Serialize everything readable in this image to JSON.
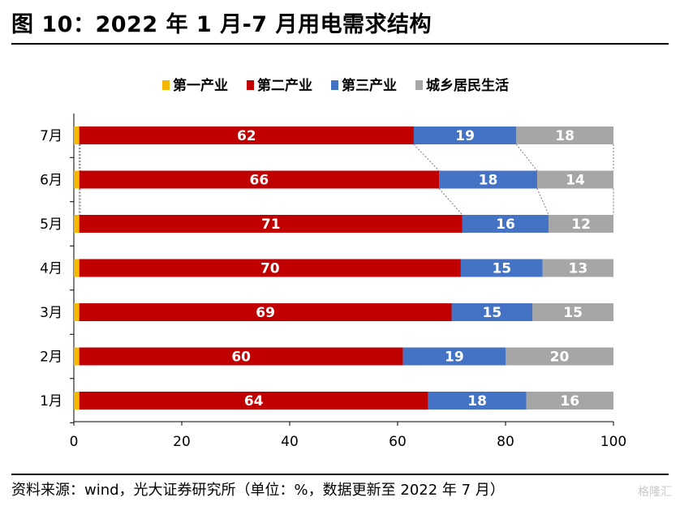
{
  "title": "图 10：2022 年 1 月-7 月用电需求结构",
  "source": "资料来源：wind，光大证券研究所（单位：%，数据更新至 2022 年 7 月）",
  "watermark": "格隆汇",
  "colors": {
    "primary": "#f5b800",
    "secondary": "#c00000",
    "tertiary": "#4472c4",
    "residential": "#a6a6a6"
  },
  "chart_data": {
    "type": "bar",
    "orientation": "horizontal",
    "stacked": true,
    "categories": [
      "7月",
      "6月",
      "5月",
      "4月",
      "3月",
      "2月",
      "1月"
    ],
    "series": [
      {
        "name": "第一产业",
        "color": "#f5b800",
        "values": [
          1,
          1,
          1,
          1,
          1,
          1,
          1
        ],
        "labels": [
          "",
          "",
          "",
          "",
          "",
          "",
          ""
        ]
      },
      {
        "name": "第二产业",
        "color": "#c00000",
        "values": [
          62,
          66,
          71,
          70,
          69,
          60,
          64
        ],
        "labels": [
          "62",
          "66",
          "71",
          "70",
          "69",
          "60",
          "64"
        ]
      },
      {
        "name": "第三产业",
        "color": "#4472c4",
        "values": [
          19,
          18,
          16,
          15,
          15,
          19,
          18
        ],
        "labels": [
          "19",
          "18",
          "16",
          "15",
          "15",
          "19",
          "18"
        ]
      },
      {
        "name": "城乡居民生活",
        "color": "#a6a6a6",
        "values": [
          18,
          14,
          12,
          13,
          15,
          20,
          16
        ],
        "labels": [
          "18",
          "14",
          "12",
          "13",
          "15",
          "20",
          "16"
        ]
      }
    ],
    "x_ticks": [
      "0",
      "20",
      "40",
      "60",
      "80",
      "100"
    ],
    "xlim": [
      0,
      100
    ],
    "legend_position": "top-center",
    "series_lines_between": [
      "7月",
      "6月",
      "5月"
    ]
  }
}
